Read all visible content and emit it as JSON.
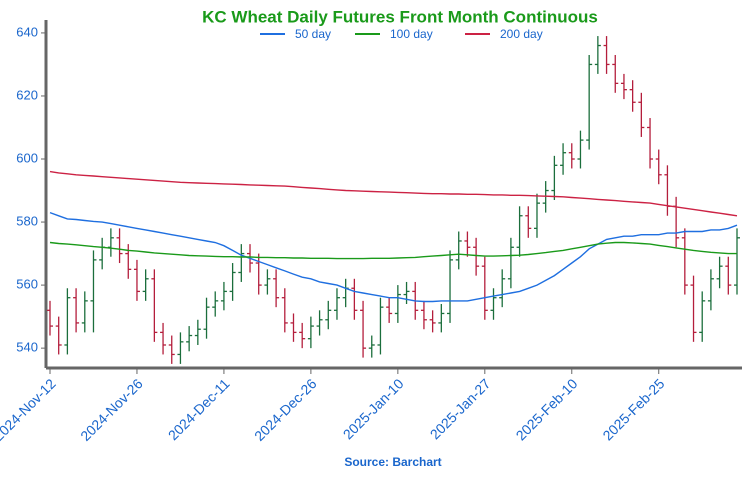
{
  "chart_data": {
    "type": "ohlc",
    "title": "KC Wheat Daily Futures Front Month Continuous",
    "source": "Source: Barchart",
    "categories": [
      "2024-Nov-12",
      null,
      null,
      null,
      null,
      null,
      null,
      null,
      null,
      null,
      "2024-Nov-26",
      null,
      null,
      null,
      null,
      null,
      null,
      null,
      null,
      null,
      "2024-Dec-11",
      null,
      null,
      null,
      null,
      null,
      null,
      null,
      null,
      null,
      "2024-Dec-26",
      null,
      null,
      null,
      null,
      null,
      null,
      null,
      null,
      null,
      "2025-Jan-10",
      null,
      null,
      null,
      null,
      null,
      null,
      null,
      null,
      null,
      "2025-Jan-27",
      null,
      null,
      null,
      null,
      null,
      null,
      null,
      null,
      null,
      "2025-Feb-10",
      null,
      null,
      null,
      null,
      null,
      null,
      null,
      null,
      null,
      "2025-Feb-25",
      null,
      null,
      null,
      null,
      null,
      null,
      null,
      null,
      null
    ],
    "open": [
      552,
      547,
      541,
      556,
      548,
      555,
      568,
      572,
      575,
      570,
      565,
      558,
      562,
      545,
      541,
      538,
      542,
      544,
      546,
      553,
      555,
      558,
      564,
      570,
      567,
      560,
      562,
      556,
      548,
      545,
      543,
      547,
      549,
      552,
      556,
      559,
      552,
      540,
      541,
      553,
      551,
      557,
      558,
      552,
      549,
      548,
      551,
      568,
      574,
      572,
      566,
      552,
      556,
      562,
      572,
      582,
      578,
      586,
      590,
      598,
      602,
      600,
      606,
      630,
      636,
      630,
      624,
      622,
      618,
      610,
      600,
      595,
      585,
      575,
      560,
      545,
      555,
      562,
      566,
      560
    ],
    "high": [
      555,
      550,
      559,
      559,
      558,
      571,
      575,
      578,
      578,
      573,
      568,
      565,
      565,
      548,
      544,
      545,
      547,
      549,
      556,
      558,
      561,
      567,
      573,
      573,
      570,
      565,
      565,
      559,
      551,
      548,
      550,
      552,
      555,
      559,
      562,
      562,
      555,
      544,
      556,
      556,
      560,
      561,
      561,
      555,
      552,
      554,
      571,
      577,
      577,
      575,
      569,
      559,
      565,
      575,
      585,
      585,
      589,
      593,
      601,
      605,
      605,
      609,
      633,
      639,
      639,
      633,
      627,
      625,
      621,
      613,
      603,
      598,
      588,
      578,
      563,
      558,
      565,
      569,
      569,
      578
    ],
    "low": [
      544,
      538,
      538,
      545,
      545,
      545,
      565,
      569,
      567,
      562,
      555,
      555,
      542,
      538,
      535,
      535,
      539,
      541,
      543,
      550,
      552,
      555,
      561,
      564,
      557,
      557,
      553,
      545,
      542,
      540,
      540,
      544,
      546,
      549,
      553,
      549,
      537,
      537,
      538,
      548,
      548,
      554,
      549,
      546,
      545,
      545,
      548,
      565,
      569,
      563,
      549,
      549,
      553,
      559,
      569,
      575,
      575,
      583,
      587,
      595,
      597,
      597,
      603,
      627,
      627,
      621,
      619,
      615,
      607,
      597,
      592,
      582,
      572,
      557,
      542,
      542,
      552,
      559,
      557,
      557
    ],
    "close": [
      547,
      541,
      556,
      548,
      555,
      568,
      572,
      575,
      570,
      565,
      558,
      562,
      545,
      541,
      538,
      542,
      544,
      546,
      553,
      555,
      558,
      564,
      570,
      567,
      560,
      562,
      556,
      548,
      545,
      543,
      547,
      549,
      552,
      556,
      559,
      552,
      540,
      541,
      553,
      551,
      557,
      558,
      552,
      549,
      548,
      551,
      568,
      574,
      572,
      566,
      552,
      556,
      562,
      572,
      582,
      578,
      586,
      590,
      598,
      602,
      600,
      606,
      630,
      636,
      630,
      624,
      622,
      618,
      610,
      600,
      595,
      585,
      575,
      560,
      545,
      555,
      562,
      566,
      560,
      575
    ],
    "up_color": "#1b6e3c",
    "down_color": "#b41e3c",
    "series": [
      {
        "name": "50 day",
        "color": "#1f6fe0",
        "values": [
          583,
          582,
          581,
          580.8,
          580.5,
          580.2,
          580,
          579.5,
          579,
          578.5,
          578,
          577.5,
          577,
          576.5,
          576,
          575.5,
          575,
          574.5,
          574,
          573.5,
          572.5,
          571,
          569.5,
          568.5,
          567.5,
          566.5,
          565.5,
          564.5,
          563.5,
          562.5,
          562,
          561,
          560.5,
          560,
          559,
          558,
          557.5,
          557,
          556.5,
          556,
          556,
          555.5,
          555,
          554.8,
          554.8,
          555,
          555,
          555,
          555,
          555.5,
          556,
          556.5,
          557,
          557.5,
          558,
          559,
          560,
          561.5,
          563,
          565,
          567,
          569,
          571.5,
          573,
          574.5,
          575,
          575.5,
          575.5,
          576,
          576,
          576,
          576.5,
          576.5,
          577,
          577,
          577,
          577.5,
          577.5,
          578,
          579
        ]
      },
      {
        "name": "100 day",
        "color": "#1a9a1a",
        "values": [
          573.5,
          573.2,
          573,
          572.8,
          572.5,
          572.2,
          572,
          571.7,
          571.4,
          571,
          570.8,
          570.5,
          570.2,
          570,
          569.8,
          569.6,
          569.4,
          569.3,
          569.2,
          569.1,
          569,
          569,
          568.9,
          568.9,
          568.8,
          568.8,
          568.7,
          568.7,
          568.6,
          568.6,
          568.5,
          568.5,
          568.5,
          568.4,
          568.4,
          568.4,
          568.4,
          568.5,
          568.5,
          568.5,
          568.6,
          568.7,
          568.8,
          569,
          569.2,
          569.4,
          569.6,
          569.8,
          569.6,
          569.4,
          569.2,
          569.2,
          569.3,
          569.4,
          569.5,
          569.7,
          570,
          570.3,
          570.7,
          571,
          571.5,
          572,
          572.5,
          573,
          573.3,
          573.5,
          573.5,
          573.4,
          573.2,
          573,
          572.6,
          572.2,
          571.8,
          571.4,
          571,
          570.7,
          570.4,
          570.2,
          570,
          570
        ]
      },
      {
        "name": "200 day",
        "color": "#cc2244",
        "values": [
          596,
          595.6,
          595.3,
          595,
          594.8,
          594.6,
          594.4,
          594.2,
          594,
          593.8,
          593.6,
          593.4,
          593.2,
          593,
          592.8,
          592.6,
          592.5,
          592.4,
          592.3,
          592.2,
          592.1,
          592,
          591.9,
          591.8,
          591.7,
          591.6,
          591.5,
          591.4,
          591.2,
          591,
          590.8,
          590.6,
          590.4,
          590.2,
          590,
          589.9,
          589.8,
          589.7,
          589.6,
          589.5,
          589.4,
          589.3,
          589.2,
          589.1,
          589,
          589,
          588.9,
          588.9,
          588.8,
          588.8,
          588.7,
          588.6,
          588.6,
          588.5,
          588.5,
          588.4,
          588.3,
          588.2,
          588.1,
          588,
          587.8,
          587.6,
          587.4,
          587.2,
          587,
          586.8,
          586.6,
          586.4,
          586.2,
          586,
          585.6,
          585.2,
          584.8,
          584.4,
          584,
          583.6,
          583.2,
          582.8,
          582.4,
          582
        ]
      }
    ],
    "ylim": [
      533.7,
      644.1
    ],
    "yticks": [
      540,
      560,
      580,
      600,
      620,
      640
    ]
  }
}
